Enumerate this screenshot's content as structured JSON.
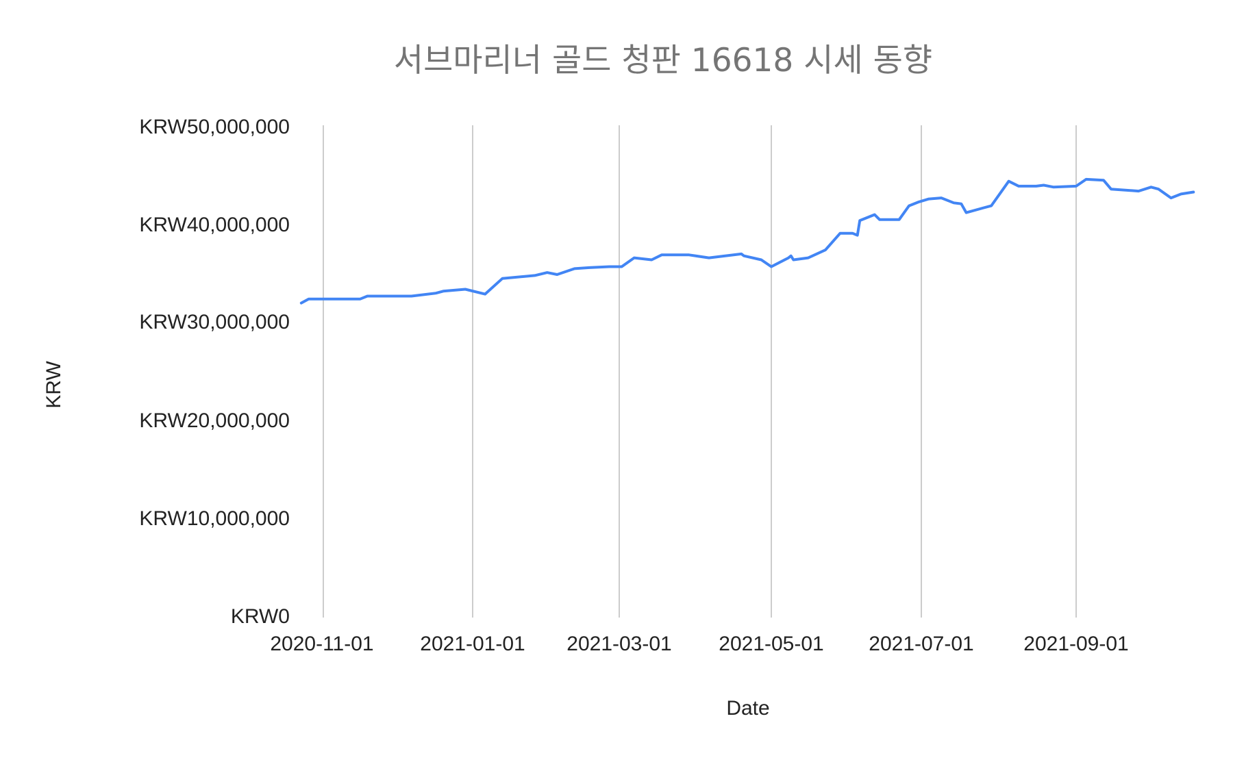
{
  "chart_data": {
    "type": "line",
    "title": "서브마리너 골드 청판 16618 시세 동향",
    "xlabel": "Date",
    "ylabel": "KRW",
    "ylim": [
      0,
      50000000
    ],
    "y_ticks": [
      "KRW0",
      "KRW10,000,000",
      "KRW20,000,000",
      "KRW30,000,000",
      "KRW40,000,000",
      "KRW50,000,000"
    ],
    "y_tick_values": [
      0,
      10000000,
      20000000,
      30000000,
      40000000,
      50000000
    ],
    "x_ticks": [
      "2020-11-01",
      "2021-01-01",
      "2021-03-01",
      "2021-05-01",
      "2021-07-01",
      "2021-09-01"
    ],
    "grid": "vertical",
    "legend": "none",
    "line_color": "#4285f4",
    "series": [
      {
        "name": "KRW",
        "points": [
          [
            "2020-10-23",
            31900000
          ],
          [
            "2020-10-26",
            32300000
          ],
          [
            "2020-11-16",
            32300000
          ],
          [
            "2020-11-19",
            32600000
          ],
          [
            "2020-12-07",
            32600000
          ],
          [
            "2020-12-17",
            32900000
          ],
          [
            "2020-12-20",
            33100000
          ],
          [
            "2020-12-29",
            33300000
          ],
          [
            "2021-01-06",
            32800000
          ],
          [
            "2021-01-13",
            34400000
          ],
          [
            "2021-01-26",
            34700000
          ],
          [
            "2021-01-31",
            35000000
          ],
          [
            "2021-02-04",
            34800000
          ],
          [
            "2021-02-11",
            35400000
          ],
          [
            "2021-02-17",
            35500000
          ],
          [
            "2021-02-25",
            35600000
          ],
          [
            "2021-03-02",
            35600000
          ],
          [
            "2021-03-07",
            36500000
          ],
          [
            "2021-03-14",
            36300000
          ],
          [
            "2021-03-18",
            36800000
          ],
          [
            "2021-03-29",
            36800000
          ],
          [
            "2021-04-06",
            36500000
          ],
          [
            "2021-04-19",
            36900000
          ],
          [
            "2021-04-20",
            36700000
          ],
          [
            "2021-04-27",
            36300000
          ],
          [
            "2021-05-01",
            35600000
          ],
          [
            "2021-05-08",
            36500000
          ],
          [
            "2021-05-09",
            36700000
          ],
          [
            "2021-05-10",
            36300000
          ],
          [
            "2021-05-16",
            36500000
          ],
          [
            "2021-05-23",
            37300000
          ],
          [
            "2021-05-29",
            39000000
          ],
          [
            "2021-06-03",
            39000000
          ],
          [
            "2021-06-05",
            38800000
          ],
          [
            "2021-06-06",
            40300000
          ],
          [
            "2021-06-12",
            40900000
          ],
          [
            "2021-06-14",
            40400000
          ],
          [
            "2021-06-22",
            40400000
          ],
          [
            "2021-06-26",
            41800000
          ],
          [
            "2021-06-30",
            42200000
          ],
          [
            "2021-07-04",
            42500000
          ],
          [
            "2021-07-09",
            42600000
          ],
          [
            "2021-07-14",
            42100000
          ],
          [
            "2021-07-17",
            42000000
          ],
          [
            "2021-07-19",
            41100000
          ],
          [
            "2021-07-26",
            41600000
          ],
          [
            "2021-07-29",
            41800000
          ],
          [
            "2021-08-05",
            44300000
          ],
          [
            "2021-08-09",
            43800000
          ],
          [
            "2021-08-16",
            43800000
          ],
          [
            "2021-08-19",
            43900000
          ],
          [
            "2021-08-23",
            43700000
          ],
          [
            "2021-09-01",
            43800000
          ],
          [
            "2021-09-05",
            44500000
          ],
          [
            "2021-09-12",
            44400000
          ],
          [
            "2021-09-15",
            43500000
          ],
          [
            "2021-09-26",
            43300000
          ],
          [
            "2021-10-01",
            43700000
          ],
          [
            "2021-10-04",
            43500000
          ],
          [
            "2021-10-09",
            42600000
          ],
          [
            "2021-10-13",
            43000000
          ],
          [
            "2021-10-18",
            43200000
          ]
        ]
      }
    ]
  }
}
